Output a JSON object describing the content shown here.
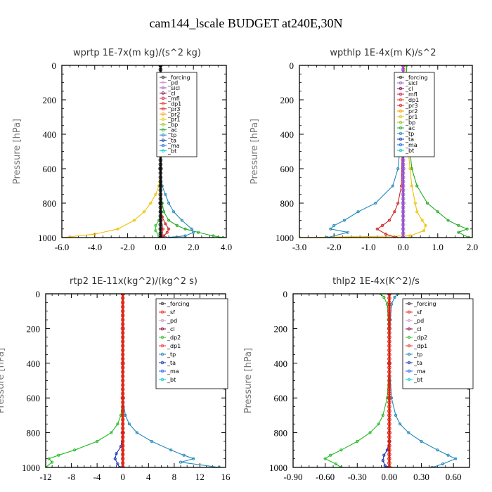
{
  "figure_title": "cam144_lscale  BUDGET at240E,30N",
  "chart_data": [
    {
      "type": "line",
      "title": "wprtp  1E-7x(m kg)/(s^2 kg)",
      "ylabel": "Pressure [hPa]",
      "xlim": [
        -6,
        4
      ],
      "ylim": [
        1000,
        0
      ],
      "xticks": [
        "-6.0",
        "-4.0",
        "-2.0",
        "0.0",
        "2.0",
        "4.0"
      ],
      "yticks": [
        "0",
        "200",
        "400",
        "600",
        "800",
        "1000"
      ],
      "legend": [
        "_forcing",
        "_pd",
        "_sicl",
        "_cl",
        "_mfl",
        "_dp1",
        "_pr3",
        "_pr2",
        "_pr1",
        "_bp",
        "_ac",
        "_tp",
        "_ta",
        "_ma",
        "_bt"
      ],
      "series": [
        {
          "name": "_pr1",
          "color": "#f0c000",
          "p": [
            0,
            200,
            400,
            600,
            700,
            750,
            800,
            850,
            900,
            950,
            980,
            1000
          ],
          "v": [
            0,
            0,
            0,
            0,
            -0.1,
            -0.3,
            -0.6,
            -1.0,
            -1.6,
            -2.6,
            -4.0,
            -6.0
          ]
        },
        {
          "name": "_ac",
          "color": "#22aa22",
          "p": [
            0,
            400,
            700,
            800,
            850,
            900,
            930,
            950,
            970,
            990,
            1000
          ],
          "v": [
            0,
            0,
            0,
            0.1,
            0.2,
            0.5,
            1.0,
            1.5,
            2.3,
            3.2,
            3.8
          ]
        },
        {
          "name": "_tp",
          "color": "#2288bb",
          "p": [
            0,
            600,
            700,
            750,
            800,
            850,
            900,
            950,
            970,
            990,
            1000
          ],
          "v": [
            0,
            0,
            0.1,
            0.3,
            0.5,
            0.8,
            1.3,
            1.9,
            2.0,
            1.5,
            0.3
          ]
        },
        {
          "name": "_pr3",
          "color": "#cc2222",
          "p": [
            0,
            800,
            880,
            920,
            950,
            970,
            990,
            1000
          ],
          "v": [
            0,
            0,
            0.1,
            0.3,
            0.5,
            0.4,
            0.2,
            0.1
          ]
        },
        {
          "name": "_bp",
          "color": "#33cc33",
          "p": [
            0,
            850,
            900,
            930,
            960,
            990,
            1000
          ],
          "v": [
            0,
            0,
            -0.1,
            -0.3,
            -0.3,
            -0.1,
            0
          ]
        },
        {
          "name": "_dp1",
          "color": "#ee3333",
          "p": [
            0,
            900,
            950,
            990,
            1000
          ],
          "v": [
            0,
            0.05,
            0.15,
            0.1,
            0
          ]
        },
        {
          "name": "_bt",
          "color": "#111111",
          "p": [
            0,
            200,
            400,
            600,
            800,
            1000
          ],
          "v": [
            0,
            0,
            0,
            0,
            0,
            0
          ]
        }
      ]
    },
    {
      "type": "line",
      "title": "wpthlp  1E-4x(m K)/s^2",
      "ylabel": "Pressure [hPa]",
      "xlim": [
        -3,
        2
      ],
      "ylim": [
        1000,
        0
      ],
      "xticks": [
        "-3.0",
        "-2.0",
        "-1.0",
        "0.0",
        "1.0",
        "2.0"
      ],
      "yticks": [
        "0",
        "200",
        "400",
        "600",
        "800",
        "1000"
      ],
      "legend": [
        "_forcing",
        "_sicl",
        "_cl",
        "_mfl",
        "_dp1",
        "_pr3",
        "_pr2",
        "_pr1",
        "_bp",
        "_ac",
        "_tp",
        "_ta",
        "_ma",
        "_bt"
      ],
      "series": [
        {
          "name": "_ac",
          "color": "#22aa22",
          "p": [
            0,
            100,
            200,
            400,
            600,
            700,
            800,
            850,
            900,
            930,
            950,
            970,
            1000
          ],
          "v": [
            0.1,
            0.1,
            0.1,
            0.15,
            0.25,
            0.4,
            0.7,
            1.0,
            1.3,
            1.6,
            1.85,
            1.6,
            1.9
          ]
        },
        {
          "name": "_pr1",
          "color": "#f0c000",
          "p": [
            0,
            100,
            200,
            400,
            600,
            700,
            800,
            850,
            900,
            930,
            960,
            990,
            1000
          ],
          "v": [
            0.05,
            0.05,
            0.05,
            0.1,
            0.2,
            0.25,
            0.35,
            0.4,
            0.55,
            0.65,
            0.6,
            0.2,
            -3.0
          ]
        },
        {
          "name": "_tp",
          "color": "#2288bb",
          "p": [
            0,
            200,
            400,
            600,
            700,
            800,
            850,
            900,
            930,
            950,
            970,
            1000
          ],
          "v": [
            0,
            -0.02,
            -0.05,
            -0.15,
            -0.3,
            -0.8,
            -1.3,
            -1.7,
            -2.0,
            -2.1,
            -1.6,
            -2.2
          ]
        },
        {
          "name": "_pr3",
          "color": "#cc2222",
          "p": [
            0,
            400,
            700,
            800,
            850,
            900,
            930,
            950,
            980,
            1000
          ],
          "v": [
            0,
            -0.02,
            -0.05,
            -0.15,
            -0.25,
            -0.4,
            -0.6,
            -0.75,
            -0.5,
            -0.2
          ]
        },
        {
          "name": "_bt",
          "color": "#9955cc",
          "p": [
            0,
            200,
            400,
            600,
            800,
            1000
          ],
          "v": [
            0,
            0,
            0,
            0,
            0,
            0
          ]
        }
      ]
    },
    {
      "type": "line",
      "title": "rtp2  1E-11x(kg^2)/(kg^2 s)",
      "ylabel": "Pressure [hPa]",
      "xlim": [
        -12,
        16
      ],
      "ylim": [
        1000,
        0
      ],
      "xticks": [
        "-12",
        "-8",
        "-4",
        "0",
        "4",
        "8",
        "12",
        "16"
      ],
      "yticks": [
        "0",
        "200",
        "400",
        "600",
        "800",
        "1000"
      ],
      "legend": [
        "_forcing",
        "_sf",
        "_pd",
        "_cl",
        "_dp2",
        "_dp1",
        "_tp",
        "_ta",
        "_ma",
        "_bt"
      ],
      "series": [
        {
          "name": "_dp1",
          "color": "#22bb22",
          "p": [
            0,
            600,
            700,
            750,
            800,
            850,
            900,
            930,
            950,
            970,
            1000
          ],
          "v": [
            0,
            0,
            -0.3,
            -0.8,
            -1.8,
            -4.0,
            -7.5,
            -10.0,
            -11.5,
            -11.0,
            -12.0
          ]
        },
        {
          "name": "_tp",
          "color": "#2288bb",
          "p": [
            0,
            600,
            700,
            750,
            800,
            850,
            900,
            930,
            950,
            970,
            1000
          ],
          "v": [
            0,
            0,
            0.4,
            1.0,
            2.2,
            4.5,
            7.5,
            9.5,
            11.0,
            9.0,
            15.0
          ]
        },
        {
          "name": "_ta",
          "color": "#1133bb",
          "p": [
            0,
            800,
            880,
            920,
            950,
            980,
            1000
          ],
          "v": [
            0,
            0,
            -0.3,
            -1.0,
            -1.2,
            -0.8,
            -0.5
          ]
        },
        {
          "name": "_forcing",
          "color": "#dd2211",
          "p": [
            0,
            200,
            400,
            600,
            800,
            1000
          ],
          "v": [
            0,
            0,
            0,
            0,
            0,
            0
          ]
        }
      ]
    },
    {
      "type": "line",
      "title": "thlp2  1E-4x(K^2)/s",
      "ylabel": "Pressure [hPa]",
      "xlim": [
        -0.9,
        0.75
      ],
      "ylim": [
        1000,
        0
      ],
      "xticks": [
        "-0.90",
        "-0.60",
        "-0.30",
        "0.00",
        "0.30",
        "0.60"
      ],
      "yticks": [
        "0",
        "200",
        "400",
        "600",
        "800",
        "1000"
      ],
      "legend": [
        "_forcing",
        "_sf",
        "_pd",
        "_cl",
        "_dp2",
        "_dp1",
        "_tp",
        "_ta",
        "_ma",
        "_bt"
      ],
      "series": [
        {
          "name": "_dp1",
          "color": "#22bb22",
          "p": [
            0,
            20,
            60,
            150,
            400,
            600,
            700,
            750,
            800,
            850,
            900,
            930,
            950,
            980,
            1000
          ],
          "v": [
            -0.08,
            -0.05,
            -0.02,
            -0.01,
            0,
            -0.02,
            -0.06,
            -0.1,
            -0.18,
            -0.3,
            -0.45,
            -0.55,
            -0.6,
            -0.5,
            -0.45
          ]
        },
        {
          "name": "_tp",
          "color": "#2288bb",
          "p": [
            0,
            20,
            60,
            150,
            400,
            600,
            700,
            750,
            800,
            850,
            900,
            930,
            950,
            980,
            1000
          ],
          "v": [
            0.08,
            0.05,
            0.02,
            0.01,
            0,
            0.02,
            0.06,
            0.1,
            0.18,
            0.3,
            0.45,
            0.55,
            0.62,
            0.5,
            0.4
          ]
        },
        {
          "name": "_ta",
          "color": "#1133bb",
          "p": [
            0,
            850,
            900,
            930,
            960,
            990,
            1000
          ],
          "v": [
            0,
            0,
            -0.02,
            -0.05,
            -0.06,
            -0.04,
            -0.02
          ]
        },
        {
          "name": "_forcing",
          "color": "#dd2211",
          "p": [
            0,
            200,
            400,
            600,
            800,
            1000
          ],
          "v": [
            0,
            0,
            0,
            0,
            0,
            0
          ]
        }
      ]
    }
  ]
}
